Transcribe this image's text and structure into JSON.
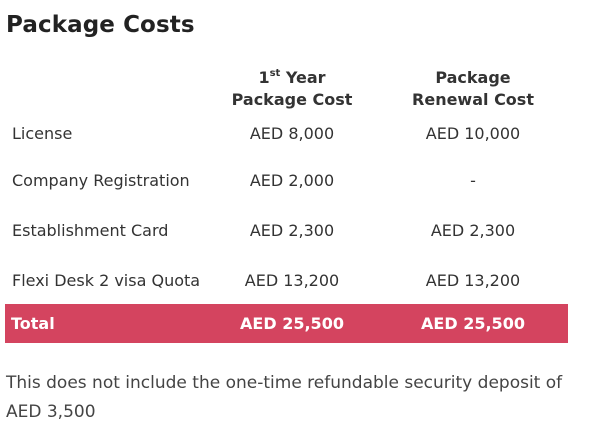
{
  "title": "Package Costs",
  "table": {
    "headers": {
      "first_year": {
        "line1_num": "1",
        "line1_sup": "st",
        "line1_rest": " Year",
        "line2": "Package Cost"
      },
      "renewal": {
        "line1": "Package",
        "line2": "Renewal Cost"
      }
    },
    "rows": [
      {
        "name": "License",
        "first_year": "AED 8,000",
        "renewal": "AED 10,000"
      },
      {
        "name": "Company Registration",
        "first_year": "AED 2,000",
        "renewal": "-"
      },
      {
        "name": "Establishment Card",
        "first_year": "AED 2,300",
        "renewal": "AED 2,300"
      },
      {
        "name": "Flexi Desk 2 visa Quota",
        "first_year": "AED 13,200",
        "renewal": "AED 13,200"
      }
    ],
    "total": {
      "name": "Total",
      "first_year": "AED 25,500",
      "renewal": "AED 25,500"
    }
  },
  "note": "This does not include the one-time refundable security deposit of AED 3,500",
  "colors": {
    "total_row_bg": "#d4445f",
    "total_row_text": "#ffffff"
  }
}
